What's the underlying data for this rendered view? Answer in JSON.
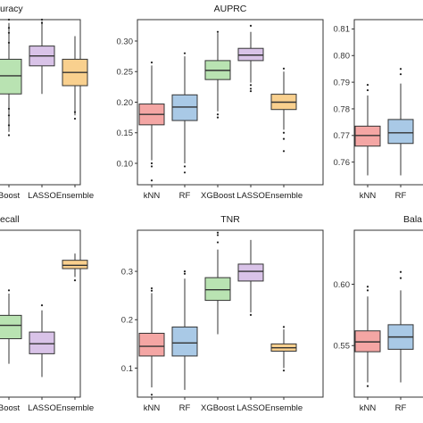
{
  "colors": {
    "kNN": "#F4A6A4",
    "RF": "#A9C9E6",
    "XGBoost": "#B9E3B2",
    "LASSO": "#D9C3E8",
    "Ensemble": "#F9D08E",
    "stroke": "#333333",
    "point": "#222222"
  },
  "chart_data": [
    {
      "type": "box",
      "title": "uracy",
      "categories": [
        "Boost",
        "LASSO",
        "Ensemble"
      ],
      "category_colors": [
        "XGBoost",
        "LASSO",
        "Ensemble"
      ],
      "ylim": [
        0.0,
        1.0
      ],
      "yticks": [],
      "boxes": [
        {
          "min": 0.32,
          "q1": 0.55,
          "median": 0.66,
          "q3": 0.76,
          "max": 0.98,
          "outliers": [
            0.3,
            0.36,
            0.42,
            0.46,
            0.86,
            0.92,
            0.95,
            1.0
          ]
        },
        {
          "min": 0.55,
          "q1": 0.72,
          "median": 0.78,
          "q3": 0.84,
          "max": 0.99,
          "outliers": [
            0.98,
            1.0
          ]
        },
        {
          "min": 0.42,
          "q1": 0.6,
          "median": 0.68,
          "q3": 0.76,
          "max": 0.9,
          "outliers": [
            0.4,
            0.44
          ]
        }
      ]
    },
    {
      "type": "box",
      "title": "AUPRC",
      "categories": [
        "kNN",
        "RF",
        "XGBoost",
        "LASSO",
        "Ensemble"
      ],
      "category_colors": [
        "kNN",
        "RF",
        "XGBoost",
        "LASSO",
        "Ensemble"
      ],
      "ylim": [
        0.065,
        0.335
      ],
      "yticks": [
        0.1,
        0.15,
        0.2,
        0.25,
        0.3
      ],
      "tick_labels": [
        "0.10",
        "0.15",
        "0.20",
        "0.25",
        "0.30"
      ],
      "boxes": [
        {
          "min": 0.105,
          "q1": 0.163,
          "median": 0.18,
          "q3": 0.197,
          "max": 0.26,
          "outliers": [
            0.095,
            0.1,
            0.072,
            0.265
          ]
        },
        {
          "min": 0.1,
          "q1": 0.17,
          "median": 0.192,
          "q3": 0.212,
          "max": 0.275,
          "outliers": [
            0.095,
            0.085,
            0.28
          ]
        },
        {
          "min": 0.185,
          "q1": 0.237,
          "median": 0.252,
          "q3": 0.268,
          "max": 0.313,
          "outliers": [
            0.18,
            0.175,
            0.315
          ]
        },
        {
          "min": 0.232,
          "q1": 0.268,
          "median": 0.277,
          "q3": 0.288,
          "max": 0.315,
          "outliers": [
            0.228,
            0.222,
            0.218,
            0.325
          ]
        },
        {
          "min": 0.155,
          "q1": 0.188,
          "median": 0.2,
          "q3": 0.213,
          "max": 0.25,
          "outliers": [
            0.15,
            0.14,
            0.12,
            0.255
          ]
        }
      ]
    },
    {
      "type": "box",
      "title": "",
      "categories": [
        "kNN",
        "RF"
      ],
      "category_colors": [
        "kNN",
        "RF"
      ],
      "ylim": [
        0.7515,
        0.8135
      ],
      "yticks": [
        0.76,
        0.77,
        0.78,
        0.79,
        0.8,
        0.81
      ],
      "tick_labels": [
        "0.76",
        "0.77",
        "0.78",
        "0.79",
        "0.80",
        "0.81"
      ],
      "boxes": [
        {
          "min": 0.755,
          "q1": 0.766,
          "median": 0.77,
          "q3": 0.7735,
          "max": 0.785,
          "outliers": [
            0.789,
            0.787
          ]
        },
        {
          "min": 0.755,
          "q1": 0.767,
          "median": 0.771,
          "q3": 0.776,
          "max": 0.7895,
          "outliers": [
            0.793,
            0.795
          ]
        }
      ]
    },
    {
      "type": "box",
      "title": "ecall",
      "categories": [
        "Boost",
        "LASSO",
        "Ensemble"
      ],
      "category_colors": [
        "XGBoost",
        "LASSO",
        "Ensemble"
      ],
      "ylim": [
        0.0,
        1.0
      ],
      "yticks": [],
      "boxes": [
        {
          "min": 0.2,
          "q1": 0.35,
          "median": 0.43,
          "q3": 0.49,
          "max": 0.62,
          "outliers": [
            0.64
          ]
        },
        {
          "min": 0.12,
          "q1": 0.26,
          "median": 0.32,
          "q3": 0.39,
          "max": 0.52,
          "outliers": [
            0.55
          ]
        },
        {
          "min": 0.72,
          "q1": 0.77,
          "median": 0.79,
          "q3": 0.82,
          "max": 0.86,
          "outliers": [
            0.7
          ]
        }
      ]
    },
    {
      "type": "box",
      "title": "TNR",
      "categories": [
        "kNN",
        "RF",
        "XGBoost",
        "LASSO",
        "Ensemble"
      ],
      "category_colors": [
        "kNN",
        "RF",
        "XGBoost",
        "LASSO",
        "Ensemble"
      ],
      "ylim": [
        0.04,
        0.385
      ],
      "yticks": [
        0.1,
        0.2,
        0.3
      ],
      "tick_labels": [
        "0.1",
        "0.2",
        "0.3"
      ],
      "boxes": [
        {
          "min": 0.06,
          "q1": 0.125,
          "median": 0.145,
          "q3": 0.172,
          "max": 0.255,
          "outliers": [
            0.045,
            0.26,
            0.265
          ]
        },
        {
          "min": 0.055,
          "q1": 0.125,
          "median": 0.152,
          "q3": 0.185,
          "max": 0.285,
          "outliers": [
            0.295,
            0.3
          ]
        },
        {
          "min": 0.17,
          "q1": 0.24,
          "median": 0.262,
          "q3": 0.287,
          "max": 0.345,
          "outliers": [
            0.36,
            0.375,
            0.38
          ]
        },
        {
          "min": 0.215,
          "q1": 0.28,
          "median": 0.3,
          "q3": 0.315,
          "max": 0.365,
          "outliers": [
            0.21
          ]
        },
        {
          "min": 0.1,
          "q1": 0.135,
          "median": 0.142,
          "q3": 0.15,
          "max": 0.18,
          "outliers": [
            0.095,
            0.185
          ]
        }
      ]
    },
    {
      "type": "box",
      "title": "Bala",
      "categories": [
        "kNN",
        "RF"
      ],
      "category_colors": [
        "kNN",
        "RF"
      ],
      "ylim": [
        0.508,
        0.644
      ],
      "yticks": [
        0.55,
        0.6
      ],
      "tick_labels": [
        "0.55",
        "0.60"
      ],
      "boxes": [
        {
          "min": 0.52,
          "q1": 0.545,
          "median": 0.553,
          "q3": 0.562,
          "max": 0.59,
          "outliers": [
            0.595,
            0.598,
            0.517
          ]
        },
        {
          "min": 0.52,
          "q1": 0.547,
          "median": 0.557,
          "q3": 0.567,
          "max": 0.595,
          "outliers": [
            0.605,
            0.61
          ]
        }
      ]
    }
  ]
}
